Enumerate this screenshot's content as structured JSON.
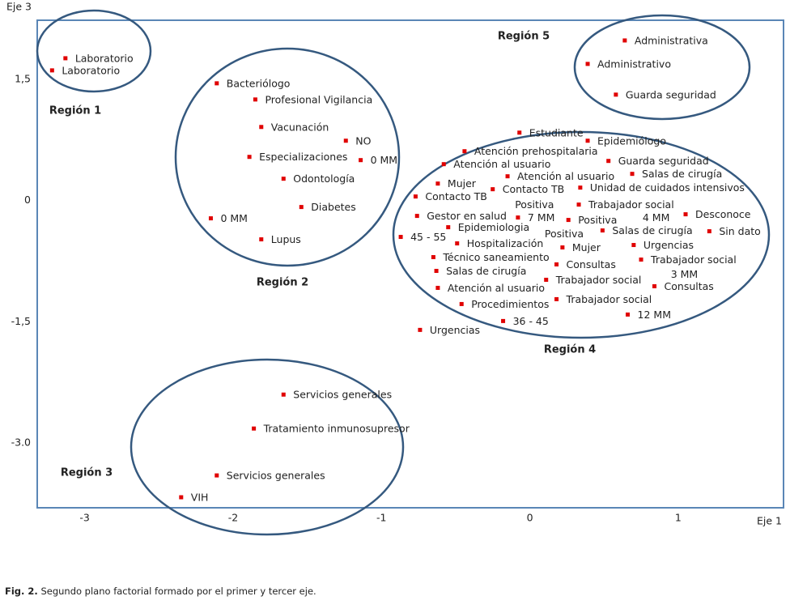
{
  "chart_data": {
    "type": "scatter",
    "x_label": "Eje 1",
    "y_label": "Eje 3",
    "xlim": [
      -3.32,
      1.71
    ],
    "ylim": [
      -3.8,
      2.23
    ],
    "xticks": [
      -3,
      -2,
      -1,
      0,
      1
    ],
    "yticks": [
      {
        "value": 1.5,
        "label": "1,5"
      },
      0,
      {
        "value": -1.5,
        "label": "-1,5"
      },
      {
        "value": -3.0,
        "label": "-3.0"
      }
    ],
    "grid": false,
    "color": "#e00000",
    "frame_color": "#5a86b6",
    "region_color": "#35597f",
    "point_labels": [
      "Laboratorio",
      "Laboratorio",
      "Bacteriólogo",
      "Profesional Vigilancia",
      "Vacunación",
      "NO",
      "Especializaciones",
      "0 MM",
      "Odontología",
      "Diabetes",
      "0 MM",
      "Lupus",
      "Administrativa",
      "Administrativo",
      "Guarda seguridad",
      "Estudiante",
      "Epidemiólogo",
      "Atención prehospitalaria",
      "Guarda seguridad",
      "Atención al usuario",
      "Salas de cirugía",
      "Atención al usuario",
      "Mujer",
      "Unidad de cuidados intensivos",
      "Contacto TB",
      "Contacto TB",
      "Trabajador social",
      "Gestor en salud",
      "7 MM",
      "Positiva",
      "Desconoce",
      "Epidemiologia",
      "Salas de cirugía",
      "Sin dato",
      "45 - 55",
      "Hospitalización",
      "Mujer",
      "Urgencias",
      "Técnico saneamiento",
      "Trabajador social",
      "Consultas",
      "Salas de cirugía",
      "Trabajador social",
      "Atención al usuario",
      "Consultas",
      "Trabajador social",
      "Procedimientos",
      "12 MM",
      "36 - 45",
      "Urgencias",
      "Servicios generales",
      "Tratamiento inmunosupresor",
      "Servicios generales",
      "VIH"
    ],
    "x": [
      -3.13,
      -3.22,
      -2.11,
      -1.85,
      -1.81,
      -1.24,
      -1.89,
      -1.14,
      -1.66,
      -1.54,
      -2.15,
      -1.81,
      0.64,
      0.39,
      0.58,
      -0.07,
      0.39,
      -0.44,
      0.53,
      -0.58,
      0.69,
      -0.15,
      -0.62,
      0.34,
      -0.25,
      -0.77,
      0.33,
      -0.76,
      -0.08,
      0.26,
      1.05,
      -0.55,
      0.49,
      1.21,
      -0.87,
      -0.49,
      0.22,
      0.7,
      -0.65,
      0.75,
      0.18,
      -0.63,
      0.11,
      -0.62,
      0.84,
      0.18,
      -0.46,
      0.66,
      -0.18,
      -0.74,
      -1.66,
      -1.86,
      -2.11,
      -2.35
    ],
    "values": [
      1.76,
      1.61,
      1.45,
      1.25,
      0.91,
      0.74,
      0.54,
      0.5,
      0.27,
      -0.08,
      -0.22,
      -0.48,
      1.98,
      1.69,
      1.31,
      0.84,
      0.74,
      0.61,
      0.49,
      0.45,
      0.33,
      0.3,
      0.21,
      0.16,
      0.14,
      0.05,
      -0.05,
      -0.19,
      -0.21,
      -0.24,
      -0.17,
      -0.33,
      -0.37,
      -0.38,
      -0.45,
      -0.53,
      -0.58,
      -0.55,
      -0.7,
      -0.73,
      -0.79,
      -0.87,
      -0.98,
      -1.08,
      -1.06,
      -1.22,
      -1.28,
      -1.41,
      -1.49,
      -1.6,
      -2.4,
      -2.82,
      -3.4,
      -3.67
    ],
    "annotations": [
      {
        "text": "Positiva",
        "x": -0.1,
        "y": -0.06
      },
      {
        "text": "Positiva",
        "x": 0.1,
        "y": -0.42
      },
      {
        "text": "4 MM",
        "x": 0.76,
        "y": -0.22
      },
      {
        "text": "3 MM",
        "x": 0.95,
        "y": -0.92
      }
    ],
    "regions": [
      "Región 1",
      "Región 2",
      "Región 3",
      "Región 4",
      "Región 5"
    ]
  },
  "caption": {
    "label": "Fig. 2.",
    "text": "Segundo plano factorial formado por el primer y tercer eje."
  }
}
